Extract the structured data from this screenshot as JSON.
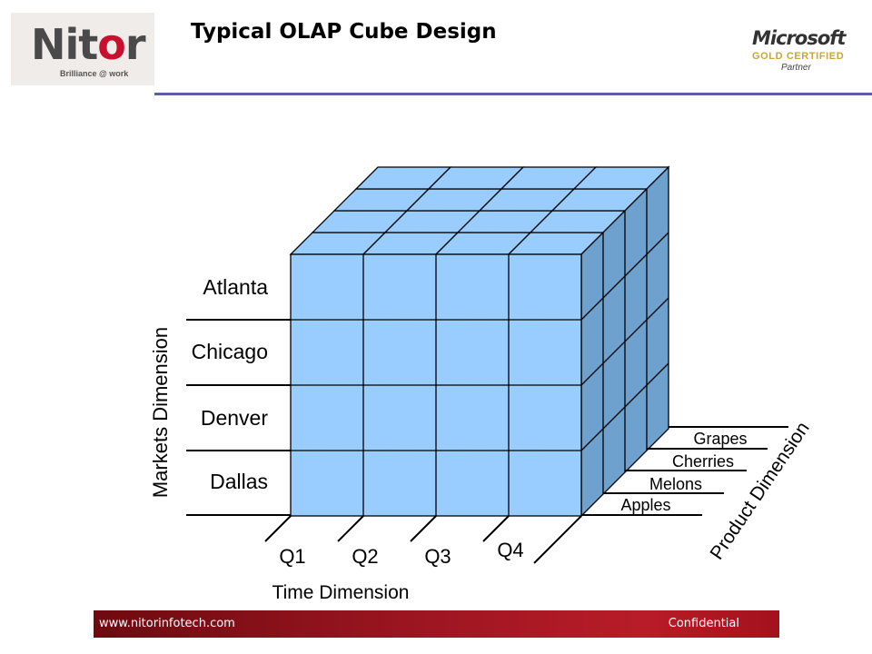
{
  "header": {
    "logo_text": "Nitor",
    "logo_tagline": "Brilliance @ work",
    "title": "Typical OLAP Cube Design",
    "partner_logo": {
      "brand": "Microsoft",
      "level": "GOLD CERTIFIED",
      "type": "Partner"
    }
  },
  "diagram": {
    "markets_axis": "Markets Dimension",
    "markets": [
      "Atlanta",
      "Chicago",
      "Denver",
      "Dallas"
    ],
    "time_axis": "Time Dimension",
    "quarters": [
      "Q1",
      "Q2",
      "Q3",
      "Q4"
    ],
    "product_axis": "Product Dimension",
    "products": [
      "Grapes",
      "Cherries",
      "Melons",
      "Apples"
    ],
    "colors": {
      "front": "#99ccff",
      "top": "#99ccff",
      "side": "#6fa1cf",
      "line": "#000000"
    }
  },
  "footer": {
    "url": "www.nitorinfotech.com",
    "label": "Confidential"
  }
}
